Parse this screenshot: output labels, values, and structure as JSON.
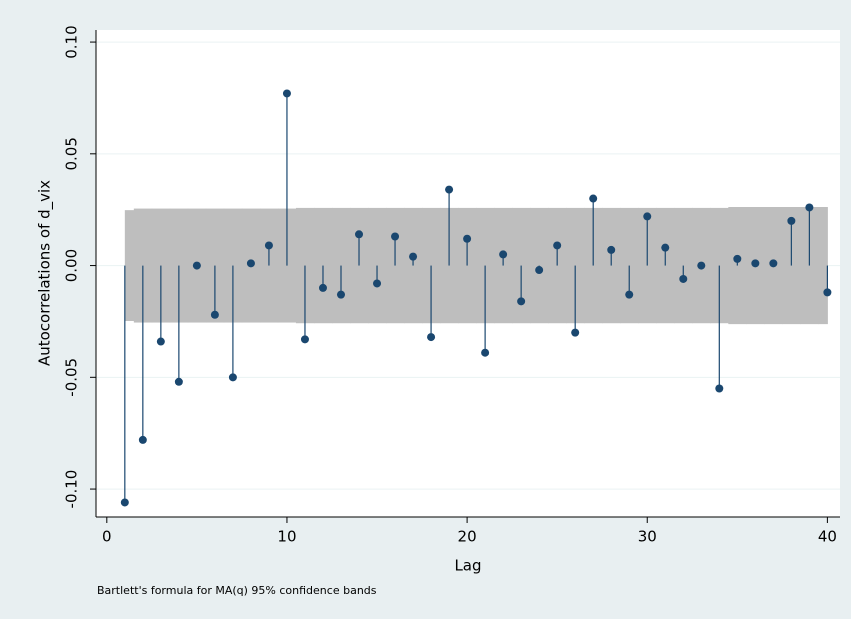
{
  "chart_data": {
    "type": "stem",
    "y_label": "Autocorrelations of d_vix",
    "x_label": "Lag",
    "note": "Bartlett's formula for MA(q) 95% confidence bands",
    "color": "#1a476f",
    "x": [
      1,
      2,
      3,
      4,
      5,
      6,
      7,
      8,
      9,
      10,
      11,
      12,
      13,
      14,
      15,
      16,
      17,
      18,
      19,
      20,
      21,
      22,
      23,
      24,
      25,
      26,
      27,
      28,
      29,
      30,
      31,
      32,
      33,
      34,
      35,
      36,
      37,
      38,
      39,
      40
    ],
    "values": [
      -0.106,
      -0.078,
      -0.034,
      -0.052,
      0.0,
      -0.022,
      -0.05,
      0.001,
      0.009,
      0.077,
      -0.033,
      -0.01,
      -0.013,
      0.014,
      -0.008,
      0.013,
      0.004,
      -0.032,
      0.034,
      0.012,
      -0.039,
      0.005,
      -0.016,
      -0.002,
      0.009,
      -0.03,
      0.03,
      0.007,
      -0.013,
      0.022,
      0.008,
      -0.006,
      0.0,
      -0.055,
      0.003,
      0.001,
      0.001,
      0.02,
      0.026,
      -0.012
    ],
    "band": {
      "color": "#bebebe",
      "upper": [
        0.0248,
        0.0255,
        0.0255,
        0.0255,
        0.0255,
        0.0255,
        0.0255,
        0.0255,
        0.0255,
        0.0255,
        0.0258,
        0.0258,
        0.0258,
        0.0258,
        0.0258,
        0.0258,
        0.0258,
        0.0258,
        0.0258,
        0.0258,
        0.0258,
        0.0258,
        0.0258,
        0.0258,
        0.0258,
        0.0258,
        0.0258,
        0.0258,
        0.0258,
        0.0258,
        0.0258,
        0.0258,
        0.0258,
        0.0258,
        0.0262,
        0.0262,
        0.0262,
        0.0262,
        0.0262,
        0.0262
      ],
      "lower": [
        -0.0248,
        -0.0255,
        -0.0255,
        -0.0255,
        -0.0255,
        -0.0255,
        -0.0255,
        -0.0255,
        -0.0255,
        -0.0255,
        -0.0258,
        -0.0258,
        -0.0258,
        -0.0258,
        -0.0258,
        -0.0258,
        -0.0258,
        -0.0258,
        -0.0258,
        -0.0258,
        -0.0258,
        -0.0258,
        -0.0258,
        -0.0258,
        -0.0258,
        -0.0258,
        -0.0258,
        -0.0258,
        -0.0258,
        -0.0258,
        -0.0258,
        -0.0258,
        -0.0258,
        -0.0258,
        -0.0262,
        -0.0262,
        -0.0262,
        -0.0262,
        -0.0262,
        -0.0262
      ]
    },
    "xlim": [
      -0.6,
      40.7
    ],
    "xticks": [
      0,
      10,
      20,
      30,
      40
    ],
    "ylim": [
      -0.1125,
      0.1054
    ],
    "yticks": [
      {
        "value": -0.1,
        "label": "-0.10"
      },
      -0.05,
      {
        "value": 0,
        "label": "0.00"
      },
      0.05,
      {
        "value": 0.1,
        "label": "0.10"
      }
    ],
    "grid": true
  }
}
